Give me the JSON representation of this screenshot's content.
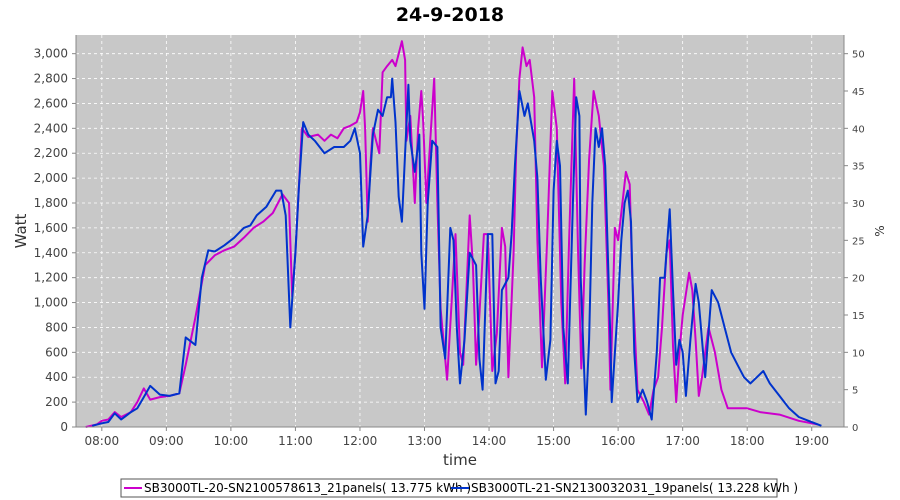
{
  "chart_data": {
    "type": "line",
    "title": "24-9-2018",
    "xlabel": "time",
    "ylabel": "Watt",
    "y2label": "%",
    "xlim": [
      7.6,
      19.5
    ],
    "ylim": [
      0,
      3150
    ],
    "y2lim": [
      0,
      52.5
    ],
    "grid": true,
    "legend_position": "bottom",
    "x_ticks": [
      8,
      9,
      10,
      11,
      12,
      13,
      14,
      15,
      16,
      17,
      18,
      19
    ],
    "x_tick_labels": [
      "08:00",
      "09:00",
      "10:00",
      "11:00",
      "12:00",
      "13:00",
      "14:00",
      "15:00",
      "16:00",
      "17:00",
      "18:00",
      "19:00"
    ],
    "y_ticks": [
      0,
      200,
      400,
      600,
      800,
      1000,
      1200,
      1400,
      1600,
      1800,
      2000,
      2200,
      2400,
      2600,
      2800,
      3000
    ],
    "y_tick_labels": [
      "0",
      "200",
      "400",
      "600",
      "800",
      "1,000",
      "1,200",
      "1,400",
      "1,600",
      "1,800",
      "2,000",
      "2,200",
      "2,400",
      "2,600",
      "2,800",
      "3,000"
    ],
    "y2_ticks": [
      0,
      5,
      10,
      15,
      20,
      25,
      30,
      35,
      40,
      45,
      50
    ],
    "y2_tick_labels": [
      "0",
      "5",
      "10",
      "15",
      "20",
      "25",
      "30",
      "35",
      "40",
      "45",
      "50"
    ],
    "series": [
      {
        "name": "SB3000TL-20-SN2100578613_21panels( 13.775 kWh )",
        "color": "#cc00cc",
        "points": [
          [
            7.75,
            0
          ],
          [
            7.92,
            20
          ],
          [
            8.0,
            50
          ],
          [
            8.1,
            60
          ],
          [
            8.2,
            120
          ],
          [
            8.3,
            80
          ],
          [
            8.45,
            120
          ],
          [
            8.55,
            200
          ],
          [
            8.65,
            310
          ],
          [
            8.75,
            220
          ],
          [
            8.9,
            240
          ],
          [
            9.05,
            250
          ],
          [
            9.2,
            270
          ],
          [
            9.3,
            500
          ],
          [
            9.45,
            880
          ],
          [
            9.6,
            1300
          ],
          [
            9.75,
            1380
          ],
          [
            9.9,
            1420
          ],
          [
            10.05,
            1450
          ],
          [
            10.2,
            1520
          ],
          [
            10.35,
            1600
          ],
          [
            10.5,
            1650
          ],
          [
            10.65,
            1720
          ],
          [
            10.8,
            1870
          ],
          [
            10.9,
            1800
          ],
          [
            10.95,
            1050
          ],
          [
            11.0,
            1400
          ],
          [
            11.05,
            1900
          ],
          [
            11.1,
            2400
          ],
          [
            11.2,
            2330
          ],
          [
            11.35,
            2350
          ],
          [
            11.45,
            2300
          ],
          [
            11.55,
            2350
          ],
          [
            11.65,
            2320
          ],
          [
            11.75,
            2400
          ],
          [
            11.85,
            2420
          ],
          [
            11.95,
            2450
          ],
          [
            12.0,
            2530
          ],
          [
            12.05,
            2700
          ],
          [
            12.08,
            2400
          ],
          [
            12.12,
            1650
          ],
          [
            12.16,
            2100
          ],
          [
            12.2,
            2400
          ],
          [
            12.25,
            2300
          ],
          [
            12.3,
            2200
          ],
          [
            12.35,
            2850
          ],
          [
            12.42,
            2900
          ],
          [
            12.5,
            2950
          ],
          [
            12.55,
            2900
          ],
          [
            12.65,
            3100
          ],
          [
            12.7,
            2950
          ],
          [
            12.72,
            2300
          ],
          [
            12.78,
            2500
          ],
          [
            12.85,
            1800
          ],
          [
            12.9,
            2400
          ],
          [
            12.95,
            2700
          ],
          [
            12.98,
            2450
          ],
          [
            13.03,
            1800
          ],
          [
            13.1,
            2400
          ],
          [
            13.15,
            2800
          ],
          [
            13.2,
            1800
          ],
          [
            13.25,
            950
          ],
          [
            13.35,
            380
          ],
          [
            13.42,
            1000
          ],
          [
            13.48,
            1550
          ],
          [
            13.55,
            600
          ],
          [
            13.6,
            500
          ],
          [
            13.7,
            1700
          ],
          [
            13.75,
            1300
          ],
          [
            13.8,
            500
          ],
          [
            13.85,
            900
          ],
          [
            13.92,
            1550
          ],
          [
            13.98,
            1550
          ],
          [
            14.05,
            450
          ],
          [
            14.12,
            750
          ],
          [
            14.2,
            1600
          ],
          [
            14.25,
            1450
          ],
          [
            14.3,
            400
          ],
          [
            14.38,
            1400
          ],
          [
            14.42,
            2200
          ],
          [
            14.47,
            2800
          ],
          [
            14.52,
            3050
          ],
          [
            14.58,
            2900
          ],
          [
            14.63,
            2950
          ],
          [
            14.7,
            2650
          ],
          [
            14.75,
            1500
          ],
          [
            14.82,
            480
          ],
          [
            14.9,
            1500
          ],
          [
            14.98,
            2700
          ],
          [
            15.05,
            2400
          ],
          [
            15.12,
            1000
          ],
          [
            15.18,
            350
          ],
          [
            15.24,
            1500
          ],
          [
            15.32,
            2800
          ],
          [
            15.38,
            1400
          ],
          [
            15.43,
            470
          ],
          [
            15.48,
            1300
          ],
          [
            15.55,
            2150
          ],
          [
            15.62,
            2700
          ],
          [
            15.7,
            2500
          ],
          [
            15.78,
            2100
          ],
          [
            15.85,
            1000
          ],
          [
            15.88,
            300
          ],
          [
            15.95,
            1600
          ],
          [
            16.0,
            1500
          ],
          [
            16.05,
            1720
          ],
          [
            16.12,
            2050
          ],
          [
            16.18,
            1950
          ],
          [
            16.22,
            1200
          ],
          [
            16.3,
            300
          ],
          [
            16.4,
            200
          ],
          [
            16.48,
            100
          ],
          [
            16.55,
            300
          ],
          [
            16.62,
            400
          ],
          [
            16.68,
            800
          ],
          [
            16.75,
            1400
          ],
          [
            16.8,
            1500
          ],
          [
            16.85,
            650
          ],
          [
            16.9,
            200
          ],
          [
            16.95,
            600
          ],
          [
            17.0,
            900
          ],
          [
            17.1,
            1240
          ],
          [
            17.15,
            1100
          ],
          [
            17.2,
            700
          ],
          [
            17.25,
            250
          ],
          [
            17.3,
            400
          ],
          [
            17.4,
            800
          ],
          [
            17.5,
            600
          ],
          [
            17.6,
            300
          ],
          [
            17.7,
            150
          ],
          [
            17.85,
            150
          ],
          [
            18.0,
            150
          ],
          [
            18.2,
            120
          ],
          [
            18.5,
            100
          ],
          [
            18.8,
            50
          ],
          [
            19.0,
            30
          ],
          [
            19.1,
            20
          ]
        ]
      },
      {
        "name": "SB3000TL-21-SN2130032031_19panels( 13.228 kWh )",
        "color": "#0033cc",
        "points": [
          [
            7.85,
            10
          ],
          [
            8.0,
            30
          ],
          [
            8.1,
            40
          ],
          [
            8.2,
            110
          ],
          [
            8.3,
            60
          ],
          [
            8.45,
            120
          ],
          [
            8.55,
            150
          ],
          [
            8.65,
            240
          ],
          [
            8.75,
            330
          ],
          [
            8.9,
            260
          ],
          [
            9.05,
            250
          ],
          [
            9.2,
            270
          ],
          [
            9.3,
            720
          ],
          [
            9.45,
            660
          ],
          [
            9.55,
            1200
          ],
          [
            9.65,
            1420
          ],
          [
            9.75,
            1410
          ],
          [
            9.9,
            1460
          ],
          [
            10.05,
            1520
          ],
          [
            10.2,
            1600
          ],
          [
            10.3,
            1620
          ],
          [
            10.4,
            1700
          ],
          [
            10.55,
            1770
          ],
          [
            10.7,
            1900
          ],
          [
            10.78,
            1900
          ],
          [
            10.85,
            1700
          ],
          [
            10.92,
            800
          ],
          [
            11.0,
            1400
          ],
          [
            11.05,
            1900
          ],
          [
            11.12,
            2450
          ],
          [
            11.2,
            2350
          ],
          [
            11.3,
            2300
          ],
          [
            11.45,
            2200
          ],
          [
            11.6,
            2250
          ],
          [
            11.75,
            2250
          ],
          [
            11.85,
            2300
          ],
          [
            11.92,
            2400
          ],
          [
            12.0,
            2200
          ],
          [
            12.05,
            1450
          ],
          [
            12.12,
            1700
          ],
          [
            12.2,
            2350
          ],
          [
            12.28,
            2550
          ],
          [
            12.35,
            2500
          ],
          [
            12.42,
            2650
          ],
          [
            12.48,
            2650
          ],
          [
            12.5,
            2800
          ],
          [
            12.55,
            2450
          ],
          [
            12.6,
            1850
          ],
          [
            12.65,
            1650
          ],
          [
            12.7,
            2200
          ],
          [
            12.75,
            2750
          ],
          [
            12.78,
            2300
          ],
          [
            12.85,
            2050
          ],
          [
            12.92,
            2350
          ],
          [
            12.95,
            1400
          ],
          [
            13.0,
            950
          ],
          [
            13.05,
            1800
          ],
          [
            13.12,
            2300
          ],
          [
            13.2,
            2250
          ],
          [
            13.25,
            800
          ],
          [
            13.32,
            550
          ],
          [
            13.4,
            1600
          ],
          [
            13.45,
            1500
          ],
          [
            13.5,
            800
          ],
          [
            13.55,
            350
          ],
          [
            13.62,
            700
          ],
          [
            13.7,
            1400
          ],
          [
            13.8,
            1300
          ],
          [
            13.85,
            550
          ],
          [
            13.9,
            300
          ],
          [
            13.98,
            1550
          ],
          [
            14.05,
            1550
          ],
          [
            14.1,
            350
          ],
          [
            14.15,
            450
          ],
          [
            14.2,
            1100
          ],
          [
            14.3,
            1200
          ],
          [
            14.35,
            1550
          ],
          [
            14.4,
            2100
          ],
          [
            14.47,
            2700
          ],
          [
            14.55,
            2500
          ],
          [
            14.6,
            2600
          ],
          [
            14.7,
            2300
          ],
          [
            14.75,
            2000
          ],
          [
            14.8,
            1200
          ],
          [
            14.88,
            380
          ],
          [
            14.95,
            700
          ],
          [
            15.0,
            1900
          ],
          [
            15.05,
            2300
          ],
          [
            15.1,
            2100
          ],
          [
            15.15,
            800
          ],
          [
            15.22,
            350
          ],
          [
            15.3,
            1800
          ],
          [
            15.35,
            2650
          ],
          [
            15.4,
            2500
          ],
          [
            15.42,
            1200
          ],
          [
            15.5,
            100
          ],
          [
            15.55,
            700
          ],
          [
            15.6,
            1800
          ],
          [
            15.65,
            2400
          ],
          [
            15.7,
            2250
          ],
          [
            15.75,
            2400
          ],
          [
            15.8,
            2100
          ],
          [
            15.88,
            700
          ],
          [
            15.9,
            200
          ],
          [
            15.95,
            600
          ],
          [
            16.0,
            1000
          ],
          [
            16.05,
            1500
          ],
          [
            16.1,
            1800
          ],
          [
            16.15,
            1900
          ],
          [
            16.2,
            1650
          ],
          [
            16.25,
            600
          ],
          [
            16.3,
            200
          ],
          [
            16.38,
            300
          ],
          [
            16.45,
            200
          ],
          [
            16.52,
            60
          ],
          [
            16.6,
            600
          ],
          [
            16.65,
            1200
          ],
          [
            16.72,
            1200
          ],
          [
            16.8,
            1750
          ],
          [
            16.85,
            1100
          ],
          [
            16.9,
            500
          ],
          [
            16.95,
            700
          ],
          [
            17.0,
            600
          ],
          [
            17.05,
            250
          ],
          [
            17.12,
            700
          ],
          [
            17.2,
            1150
          ],
          [
            17.25,
            1000
          ],
          [
            17.35,
            400
          ],
          [
            17.45,
            1100
          ],
          [
            17.55,
            1000
          ],
          [
            17.65,
            800
          ],
          [
            17.75,
            600
          ],
          [
            17.85,
            500
          ],
          [
            17.95,
            400
          ],
          [
            18.05,
            350
          ],
          [
            18.15,
            400
          ],
          [
            18.25,
            450
          ],
          [
            18.35,
            350
          ],
          [
            18.5,
            250
          ],
          [
            18.65,
            150
          ],
          [
            18.8,
            80
          ],
          [
            18.95,
            50
          ],
          [
            19.05,
            30
          ],
          [
            19.15,
            10
          ]
        ]
      }
    ]
  }
}
